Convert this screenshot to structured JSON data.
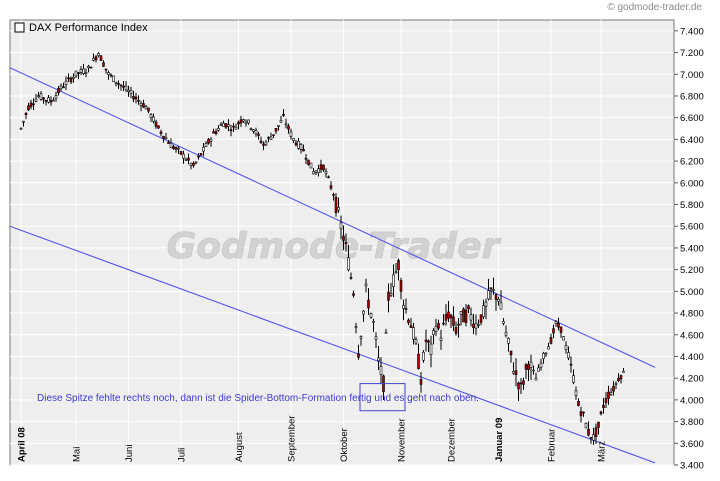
{
  "copyright": "© godmode-trader.de",
  "watermark": "Godmode-Trader",
  "chart_data": {
    "type": "candlestick",
    "title": "DAX Performance Index",
    "y_ticks": [
      3400,
      3600,
      3800,
      4000,
      4200,
      4400,
      4600,
      4800,
      5000,
      5200,
      5400,
      5600,
      5800,
      6000,
      6200,
      6400,
      6600,
      6800,
      7000,
      7200,
      7400
    ],
    "y_tick_labels": [
      "3.400",
      "3.600",
      "3.800",
      "4.000",
      "4.200",
      "4.400",
      "4.600",
      "4.800",
      "5.000",
      "5.200",
      "5.400",
      "5.600",
      "5.800",
      "6.000",
      "6.200",
      "6.400",
      "6.600",
      "6.800",
      "7.000",
      "7.200",
      "7.400"
    ],
    "ylim": [
      3400,
      7500
    ],
    "x_labels": [
      {
        "label": "April 08",
        "bold": true,
        "day": 0
      },
      {
        "label": "Mai",
        "bold": false,
        "day": 22
      },
      {
        "label": "Juni",
        "bold": false,
        "day": 43
      },
      {
        "label": "Juli",
        "bold": false,
        "day": 64
      },
      {
        "label": "August",
        "bold": false,
        "day": 87
      },
      {
        "label": "September",
        "bold": false,
        "day": 108
      },
      {
        "label": "Oktober",
        "bold": false,
        "day": 129
      },
      {
        "label": "November",
        "bold": false,
        "day": 152
      },
      {
        "label": "Dezember",
        "bold": false,
        "day": 172
      },
      {
        "label": "Januar 09",
        "bold": true,
        "day": 191
      },
      {
        "label": "Februar",
        "bold": false,
        "day": 212
      },
      {
        "label": "März",
        "bold": false,
        "day": 232
      }
    ],
    "trend_lines": [
      {
        "name": "upper",
        "from": {
          "day": -4,
          "value": 7060
        },
        "to": {
          "day": 254,
          "value": 4300
        }
      },
      {
        "name": "lower",
        "from": {
          "day": -4,
          "value": 5600
        },
        "to": {
          "day": 254,
          "value": 3420
        }
      }
    ],
    "highlight_box": {
      "from_day": 136,
      "to_day": 154,
      "low": 3900,
      "high": 4150
    },
    "annotation": "Diese Spitze fehlte rechts noch, dann ist die Spider-Bottom-Formation fertig und es geht nach oben.",
    "anchors": [
      [
        0,
        6500
      ],
      [
        3,
        6700
      ],
      [
        7,
        6800
      ],
      [
        12,
        6750
      ],
      [
        17,
        6900
      ],
      [
        22,
        7000
      ],
      [
        27,
        7050
      ],
      [
        31,
        7200
      ],
      [
        35,
        7000
      ],
      [
        40,
        6900
      ],
      [
        45,
        6800
      ],
      [
        50,
        6700
      ],
      [
        55,
        6500
      ],
      [
        60,
        6350
      ],
      [
        65,
        6250
      ],
      [
        69,
        6150
      ],
      [
        73,
        6300
      ],
      [
        77,
        6450
      ],
      [
        81,
        6550
      ],
      [
        85,
        6500
      ],
      [
        89,
        6600
      ],
      [
        93,
        6500
      ],
      [
        97,
        6350
      ],
      [
        101,
        6450
      ],
      [
        105,
        6600
      ],
      [
        109,
        6400
      ],
      [
        113,
        6300
      ],
      [
        117,
        6100
      ],
      [
        121,
        6150
      ],
      [
        125,
        5900
      ],
      [
        128,
        5600
      ],
      [
        130,
        5400
      ],
      [
        133,
        5000
      ],
      [
        135,
        4450
      ],
      [
        138,
        5000
      ],
      [
        141,
        4700
      ],
      [
        143,
        4350
      ],
      [
        145,
        4150
      ],
      [
        147,
        4950
      ],
      [
        149,
        5100
      ],
      [
        151,
        5250
      ],
      [
        153,
        4900
      ],
      [
        156,
        4700
      ],
      [
        158,
        4500
      ],
      [
        160,
        4200
      ],
      [
        162,
        4550
      ],
      [
        164,
        4450
      ],
      [
        166,
        4700
      ],
      [
        168,
        4600
      ],
      [
        171,
        4800
      ],
      [
        174,
        4650
      ],
      [
        176,
        4750
      ],
      [
        179,
        4800
      ],
      [
        182,
        4700
      ],
      [
        185,
        4800
      ],
      [
        188,
        5000
      ],
      [
        191,
        4950
      ],
      [
        194,
        4600
      ],
      [
        197,
        4300
      ],
      [
        200,
        4100
      ],
      [
        203,
        4350
      ],
      [
        206,
        4200
      ],
      [
        209,
        4400
      ],
      [
        212,
        4550
      ],
      [
        214,
        4700
      ],
      [
        216,
        4650
      ],
      [
        219,
        4400
      ],
      [
        221,
        4200
      ],
      [
        223,
        3950
      ],
      [
        225,
        3850
      ],
      [
        227,
        3700
      ],
      [
        229,
        3650
      ],
      [
        231,
        3750
      ],
      [
        233,
        3950
      ],
      [
        235,
        4050
      ],
      [
        237,
        4100
      ],
      [
        239,
        4200
      ],
      [
        241,
        4250
      ]
    ],
    "last_day": 241
  }
}
